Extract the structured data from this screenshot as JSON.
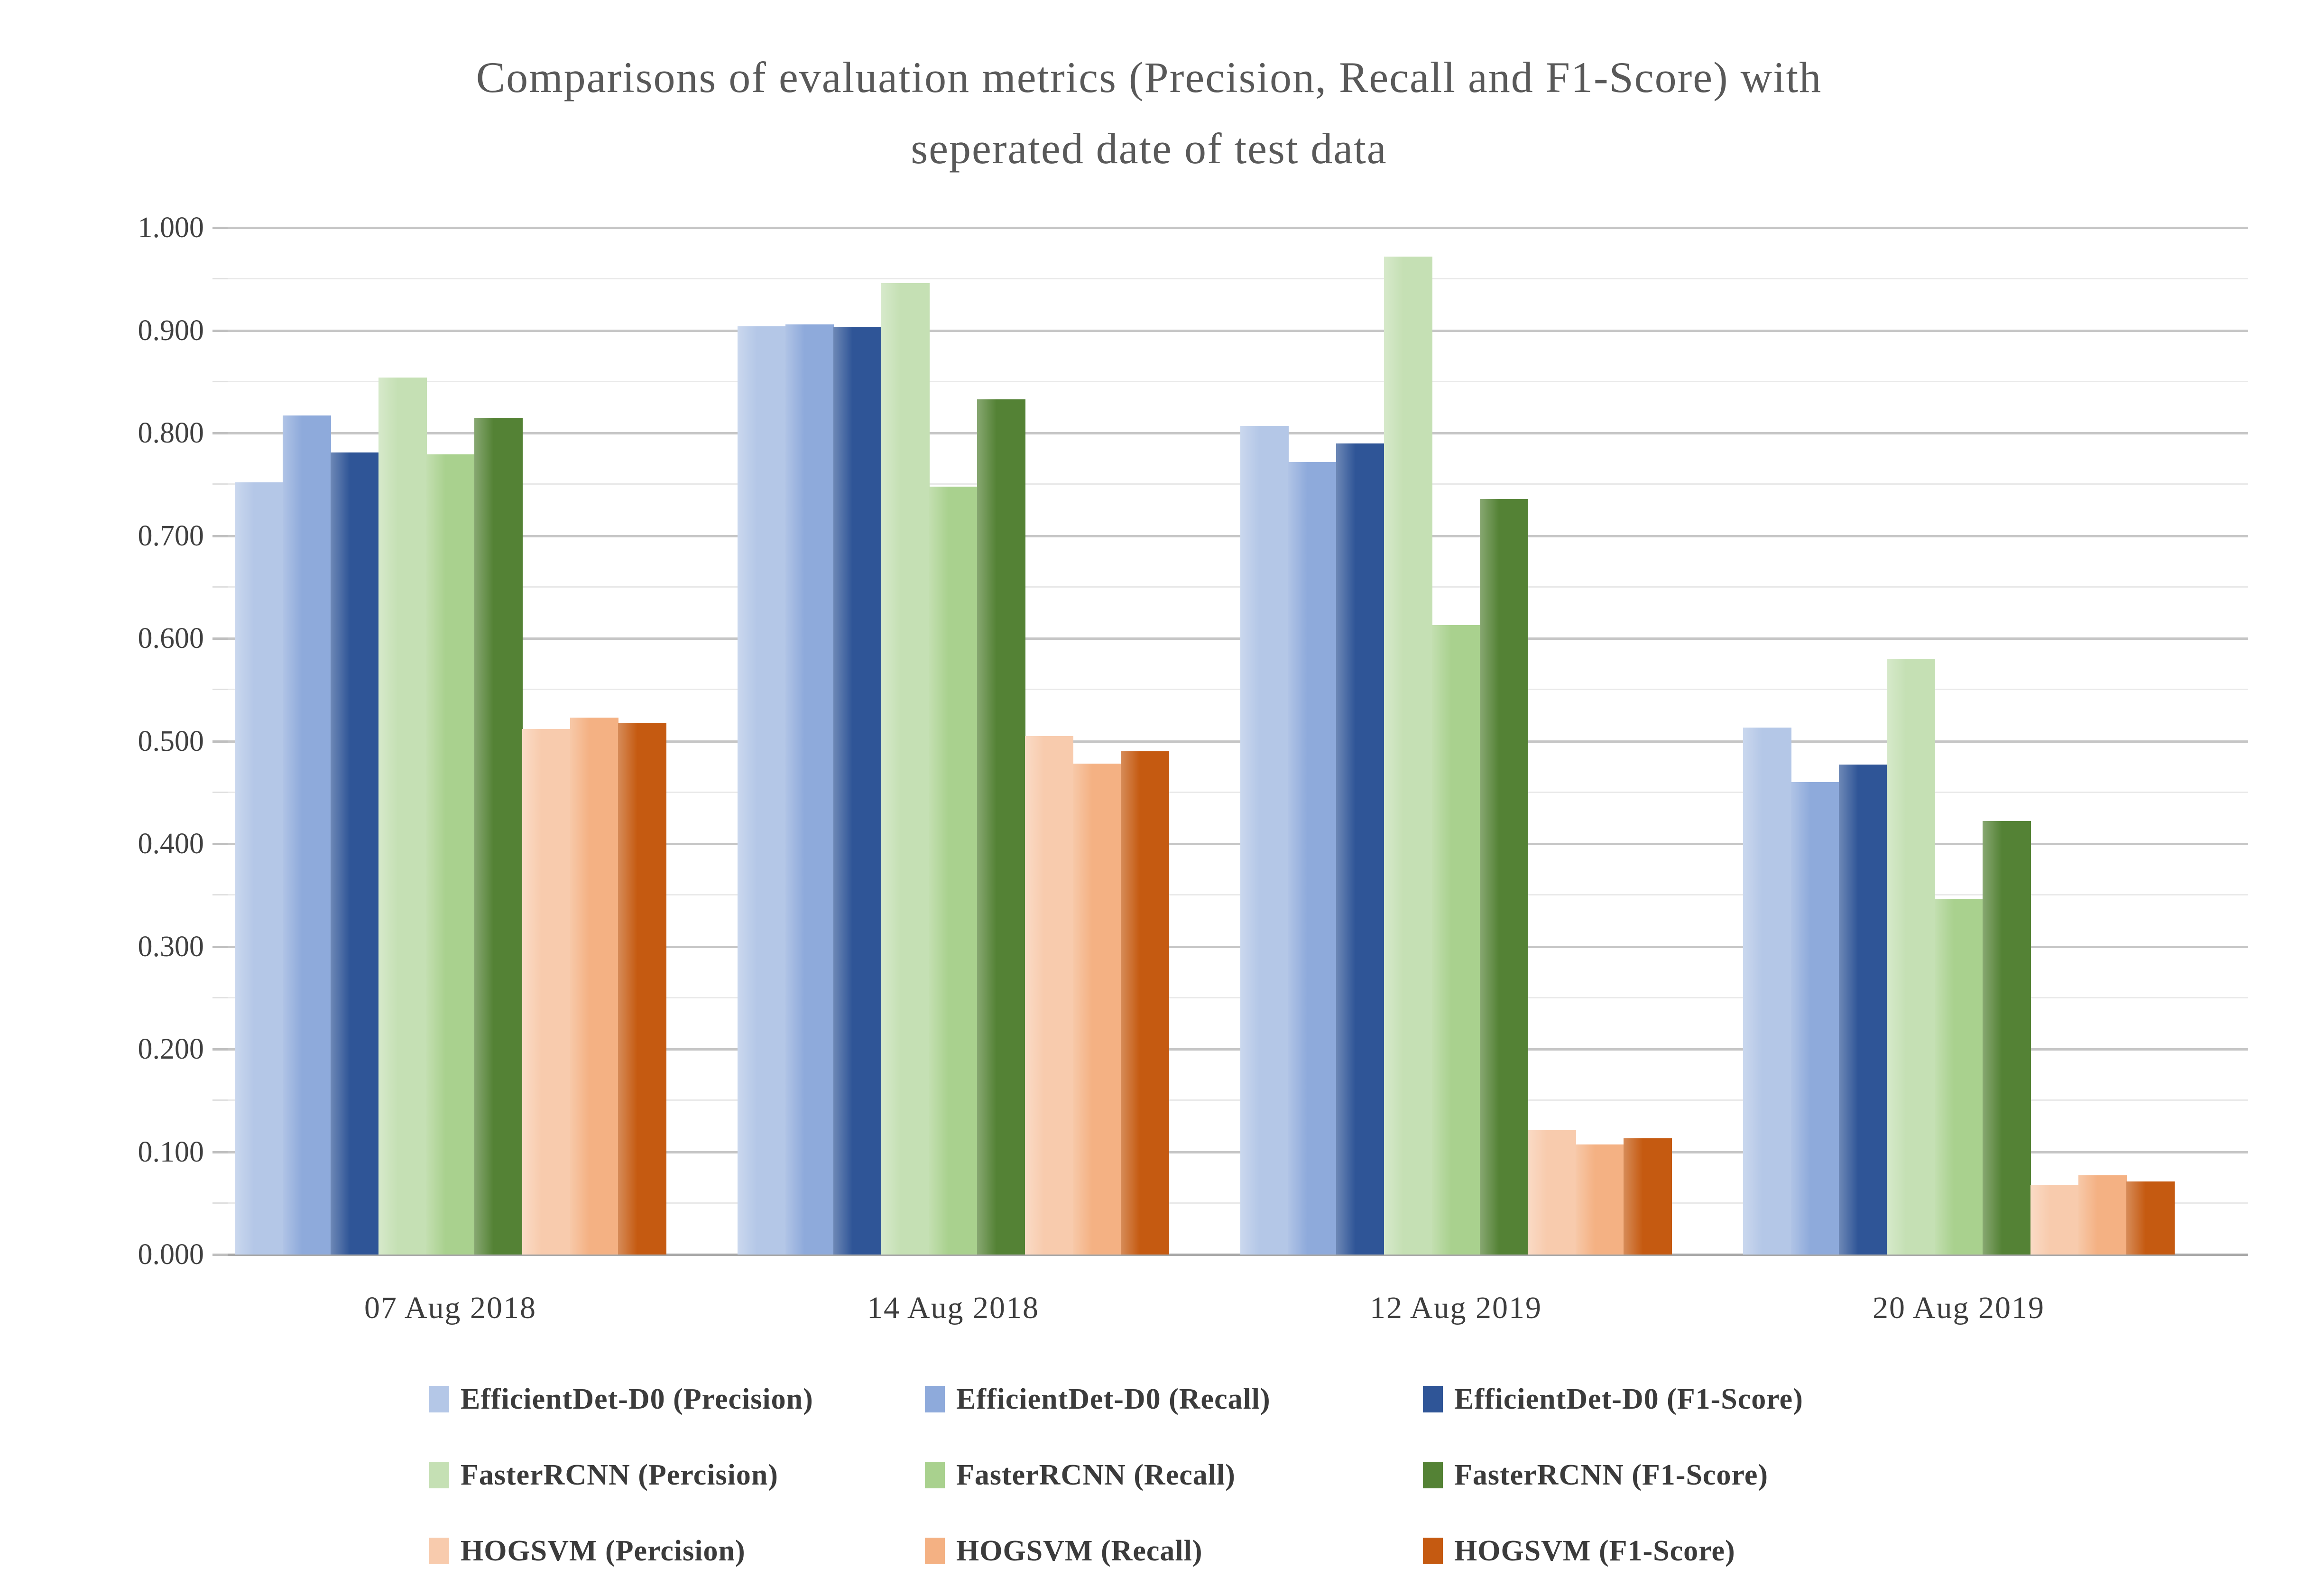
{
  "chart_data": {
    "type": "bar",
    "title_line1": "Comparisons of evaluation metrics (Precision, Recall and F1-Score) with",
    "title_line2": "seperated  date of test data",
    "categories": [
      "07 Aug 2018",
      "14 Aug 2018",
      "12 Aug 2019",
      "20 Aug 2019"
    ],
    "series": [
      {
        "name": "EfficientDet-D0 (Precision)",
        "color": "#B4C7E7",
        "values": [
          0.752,
          0.904,
          0.807,
          0.513
        ]
      },
      {
        "name": "EfficientDet-D0 (Recall)",
        "color": "#8EAADB",
        "values": [
          0.817,
          0.906,
          0.772,
          0.46
        ]
      },
      {
        "name": "EfficientDet-D0 (F1-Score)",
        "color": "#2F5597",
        "values": [
          0.781,
          0.903,
          0.79,
          0.477
        ]
      },
      {
        "name": "FasterRCNN (Percision)",
        "color": "#C5E0B4",
        "values": [
          0.854,
          0.946,
          0.972,
          0.58
        ]
      },
      {
        "name": "FasterRCNN (Recall)",
        "color": "#A9D18E",
        "values": [
          0.779,
          0.748,
          0.613,
          0.346
        ]
      },
      {
        "name": "FasterRCNN (F1-Score)",
        "color": "#548235",
        "values": [
          0.815,
          0.833,
          0.736,
          0.422
        ]
      },
      {
        "name": "HOGSVM (Percision)",
        "color": "#F8CBAD",
        "values": [
          0.512,
          0.505,
          0.121,
          0.068
        ]
      },
      {
        "name": "HOGSVM (Recall)",
        "color": "#F4B183",
        "values": [
          0.523,
          0.478,
          0.107,
          0.077
        ]
      },
      {
        "name": "HOGSVM (F1-Score)",
        "color": "#C55A11",
        "values": [
          0.518,
          0.49,
          0.113,
          0.071
        ]
      }
    ],
    "ylim": [
      0,
      1
    ],
    "y_tick_step": 0.1,
    "y_minor_step": 0.05,
    "y_tick_labels": [
      "0.000",
      "0.100",
      "0.200",
      "0.300",
      "0.400",
      "0.500",
      "0.600",
      "0.700",
      "0.800",
      "0.900",
      "1.000"
    ],
    "grid": true,
    "legend_position": "bottom",
    "legend_rows": [
      [
        "EfficientDet-D0 (Precision)",
        "EfficientDet-D0 (Recall)",
        "EfficientDet-D0 (F1-Score)"
      ],
      [
        "FasterRCNN (Percision)",
        "FasterRCNN (Recall)",
        "FasterRCNN (F1-Score)"
      ],
      [
        "HOGSVM (Percision)",
        "HOGSVM (Recall)",
        "HOGSVM (F1-Score)"
      ]
    ]
  },
  "colors": {
    "title_text": "#595959",
    "axis_text": "#404040",
    "legend_text": "#3b3b3b",
    "major_gridline": "#c6c6c6",
    "minor_gridline": "#e9e9e9",
    "baseline": "#a8a8a8",
    "background": "#ffffff"
  }
}
